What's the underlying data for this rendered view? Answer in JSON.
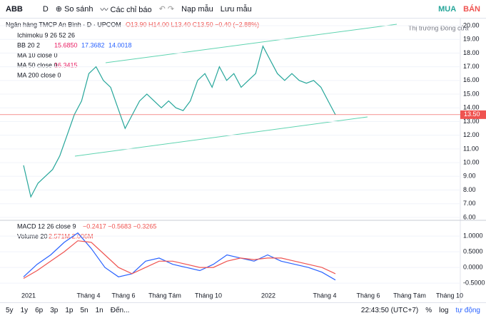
{
  "toolbar": {
    "symbol": "ABB",
    "interval": "D",
    "compare": "So sánh",
    "indicators": "Các chỉ báo",
    "load": "Nạp mẫu",
    "save": "Lưu mẫu",
    "buy": "MUA",
    "sell": "BÁN"
  },
  "legend": {
    "title": "Ngân hàng TMCP An Bình · D · UPCOM",
    "ohlc": "O13.90 H14.00 L13.40 C13.50 −0.40 (−2.88%)",
    "market": "Thị trường Đóng cửa",
    "indicators": [
      {
        "name": "Ichimoku 9 26 52 26",
        "values": []
      },
      {
        "name": "BB 20 2",
        "values": [
          "15.6850",
          "17.3682",
          "14.0018"
        ]
      },
      {
        "name": "MA 10 close 0",
        "values": []
      },
      {
        "name": "MA 50 close 0",
        "values": [
          "16.3415"
        ]
      },
      {
        "name": "MA 200 close 0",
        "values": []
      }
    ]
  },
  "chart_data": [
    {
      "type": "line",
      "series": [
        {
          "name": "ABB",
          "color": "#26a69a",
          "values": [
            9.8,
            7.5,
            8.5,
            9.0,
            9.5,
            10.5,
            12,
            13.5,
            14.5,
            16.5,
            17,
            16,
            15.5,
            14,
            12.5,
            13.5,
            14.5,
            15,
            14.5,
            14,
            14.5,
            14,
            13.8,
            14.5,
            16,
            16.5,
            15.5,
            17,
            16,
            16.5,
            15.5,
            16,
            16.5,
            18.5,
            17.5,
            16.5,
            16,
            16.5,
            16,
            15.8,
            16,
            15.5,
            14.5,
            13.5
          ]
        }
      ],
      "ylim": [
        5.84,
        20.52
      ],
      "yticks": [
        {
          "value": 6,
          "label": "6.00"
        },
        {
          "value": 7,
          "label": "7.00"
        },
        {
          "value": 8,
          "label": "8.00"
        },
        {
          "value": 9,
          "label": "9.00"
        },
        {
          "value": 10,
          "label": "10.00"
        },
        {
          "value": 11,
          "label": "11.00"
        },
        {
          "value": 12,
          "label": "12.00"
        },
        {
          "value": 13,
          "label": "13.00"
        },
        {
          "value": 14,
          "label": "14.00"
        },
        {
          "value": 15,
          "label": "15.00"
        },
        {
          "value": 16,
          "label": "16.00"
        },
        {
          "value": 17,
          "label": "17.00"
        },
        {
          "value": 18,
          "label": "18.00"
        },
        {
          "value": 19,
          "label": "19.00"
        },
        {
          "value": 20,
          "label": "20.00"
        }
      ],
      "last_price": {
        "value": 13.5,
        "label": "13.50",
        "color": "#ef5350"
      },
      "grid": true
    },
    {
      "type": "line",
      "title": "MACD 12 26 close 9",
      "title_values": "−0.2417 −0.5683 −0.3265",
      "volume": "Volume 20",
      "volume_values": "2.571M 2.006M",
      "series": [
        {
          "name": "MACD",
          "color": "#2962ff",
          "values": [
            -0.3,
            0.1,
            0.4,
            0.8,
            1.1,
            0.6,
            0.0,
            -0.3,
            -0.2,
            0.2,
            0.3,
            0.1,
            0.0,
            -0.1,
            0.1,
            0.4,
            0.3,
            0.2,
            0.4,
            0.2,
            0.1,
            0.0,
            -0.15,
            -0.4
          ]
        },
        {
          "name": "Signal",
          "color": "#ef5350",
          "values": [
            -0.35,
            -0.1,
            0.2,
            0.5,
            0.85,
            0.8,
            0.4,
            0.0,
            -0.2,
            0.0,
            0.2,
            0.2,
            0.1,
            0.0,
            0.0,
            0.2,
            0.3,
            0.25,
            0.3,
            0.3,
            0.2,
            0.1,
            0.0,
            -0.2
          ]
        }
      ],
      "ylim": [
        -0.68,
        1.48
      ],
      "yticks": [
        {
          "value": 1,
          "label": "1.0000"
        },
        {
          "value": 0.5,
          "label": "0.5000"
        },
        {
          "value": 0,
          "label": "0.0000"
        },
        {
          "value": -0.5,
          "label": "-0.5000"
        }
      ],
      "grid": true
    }
  ],
  "x_axis_labels": [
    "2021",
    "Tháng 4",
    "Tháng 6",
    "Tháng Tám",
    "Tháng 10",
    "2022",
    "Tháng 4",
    "Tháng 6",
    "Tháng Tám",
    "Tháng 10"
  ],
  "bottom_bar": {
    "ranges": [
      "5y",
      "1y",
      "6p",
      "3p",
      "1p",
      "5n",
      "1n",
      "Đến..."
    ],
    "time": "22:43:50 (UTC+7)",
    "percent": "%",
    "log": "log",
    "auto": "tự động"
  }
}
